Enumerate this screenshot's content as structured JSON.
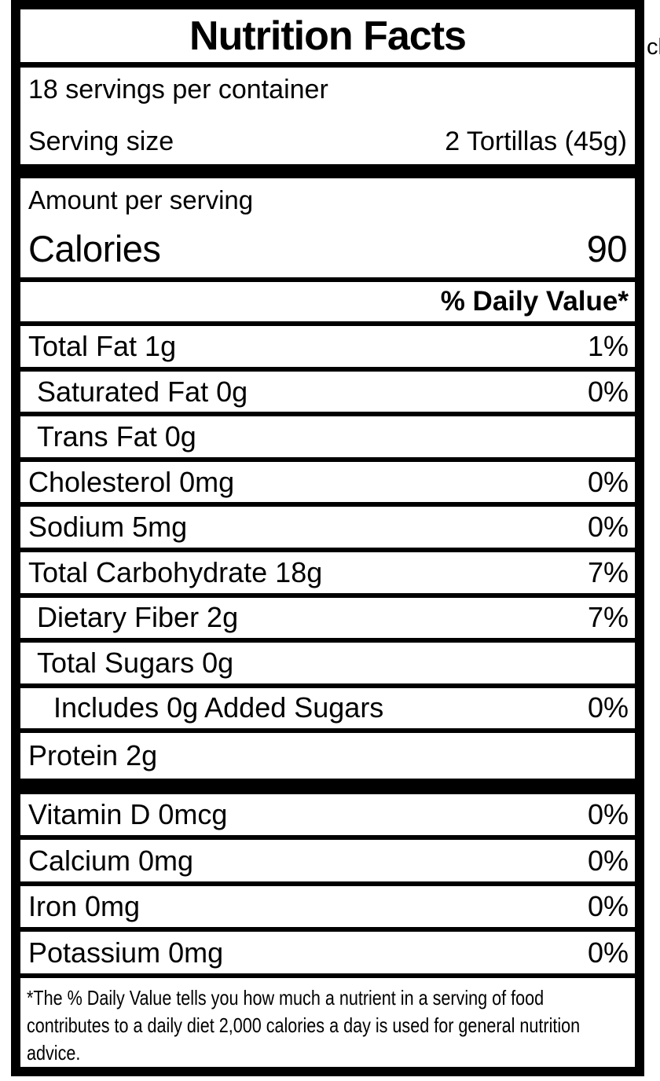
{
  "colors": {
    "ink": "#000000",
    "paper": "#ffffff"
  },
  "label": {
    "title": "Nutrition Facts",
    "servings_per_container": "18 servings per container",
    "serving_size": {
      "label": "Serving size",
      "value": "2 Tortillas (45g)"
    },
    "amount_per_serving": "Amount per serving",
    "calories": {
      "label": "Calories",
      "value": "90"
    },
    "daily_value_header": "% Daily Value*",
    "nutrients": [
      {
        "name": "Total Fat 1g",
        "dv": "1%",
        "indent": 0
      },
      {
        "name": "Saturated Fat 0g",
        "dv": "0%",
        "indent": 1
      },
      {
        "name": "Trans Fat 0g",
        "dv": "",
        "indent": 1
      },
      {
        "name": "Cholesterol 0mg",
        "dv": "0%",
        "indent": 0
      },
      {
        "name": "Sodium 5mg",
        "dv": "0%",
        "indent": 0
      },
      {
        "name": "Total Carbohydrate 18g",
        "dv": "7%",
        "indent": 0
      },
      {
        "name": "Dietary Fiber 2g",
        "dv": "7%",
        "indent": 1
      },
      {
        "name": "Total Sugars 0g",
        "dv": "",
        "indent": 1
      },
      {
        "name": "Includes 0g Added Sugars",
        "dv": "0%",
        "indent": 2
      },
      {
        "name": "Protein 2g",
        "dv": "",
        "indent": 0
      }
    ],
    "vitamins": [
      {
        "name": "Vitamin D 0mcg",
        "dv": "0%"
      },
      {
        "name": "Calcium 0mg",
        "dv": "0%"
      },
      {
        "name": "Iron 0mg",
        "dv": "0%"
      },
      {
        "name": "Potassium 0mg",
        "dv": "0%"
      }
    ],
    "footnote_lines": [
      "*The % Daily Value tells you how much a nutrient in a serving of food",
      "contributes to a daily diet 2,000 calories a day is used for general nutrition",
      "advice."
    ]
  },
  "page": {
    "edge_text_fragment": "cl"
  }
}
